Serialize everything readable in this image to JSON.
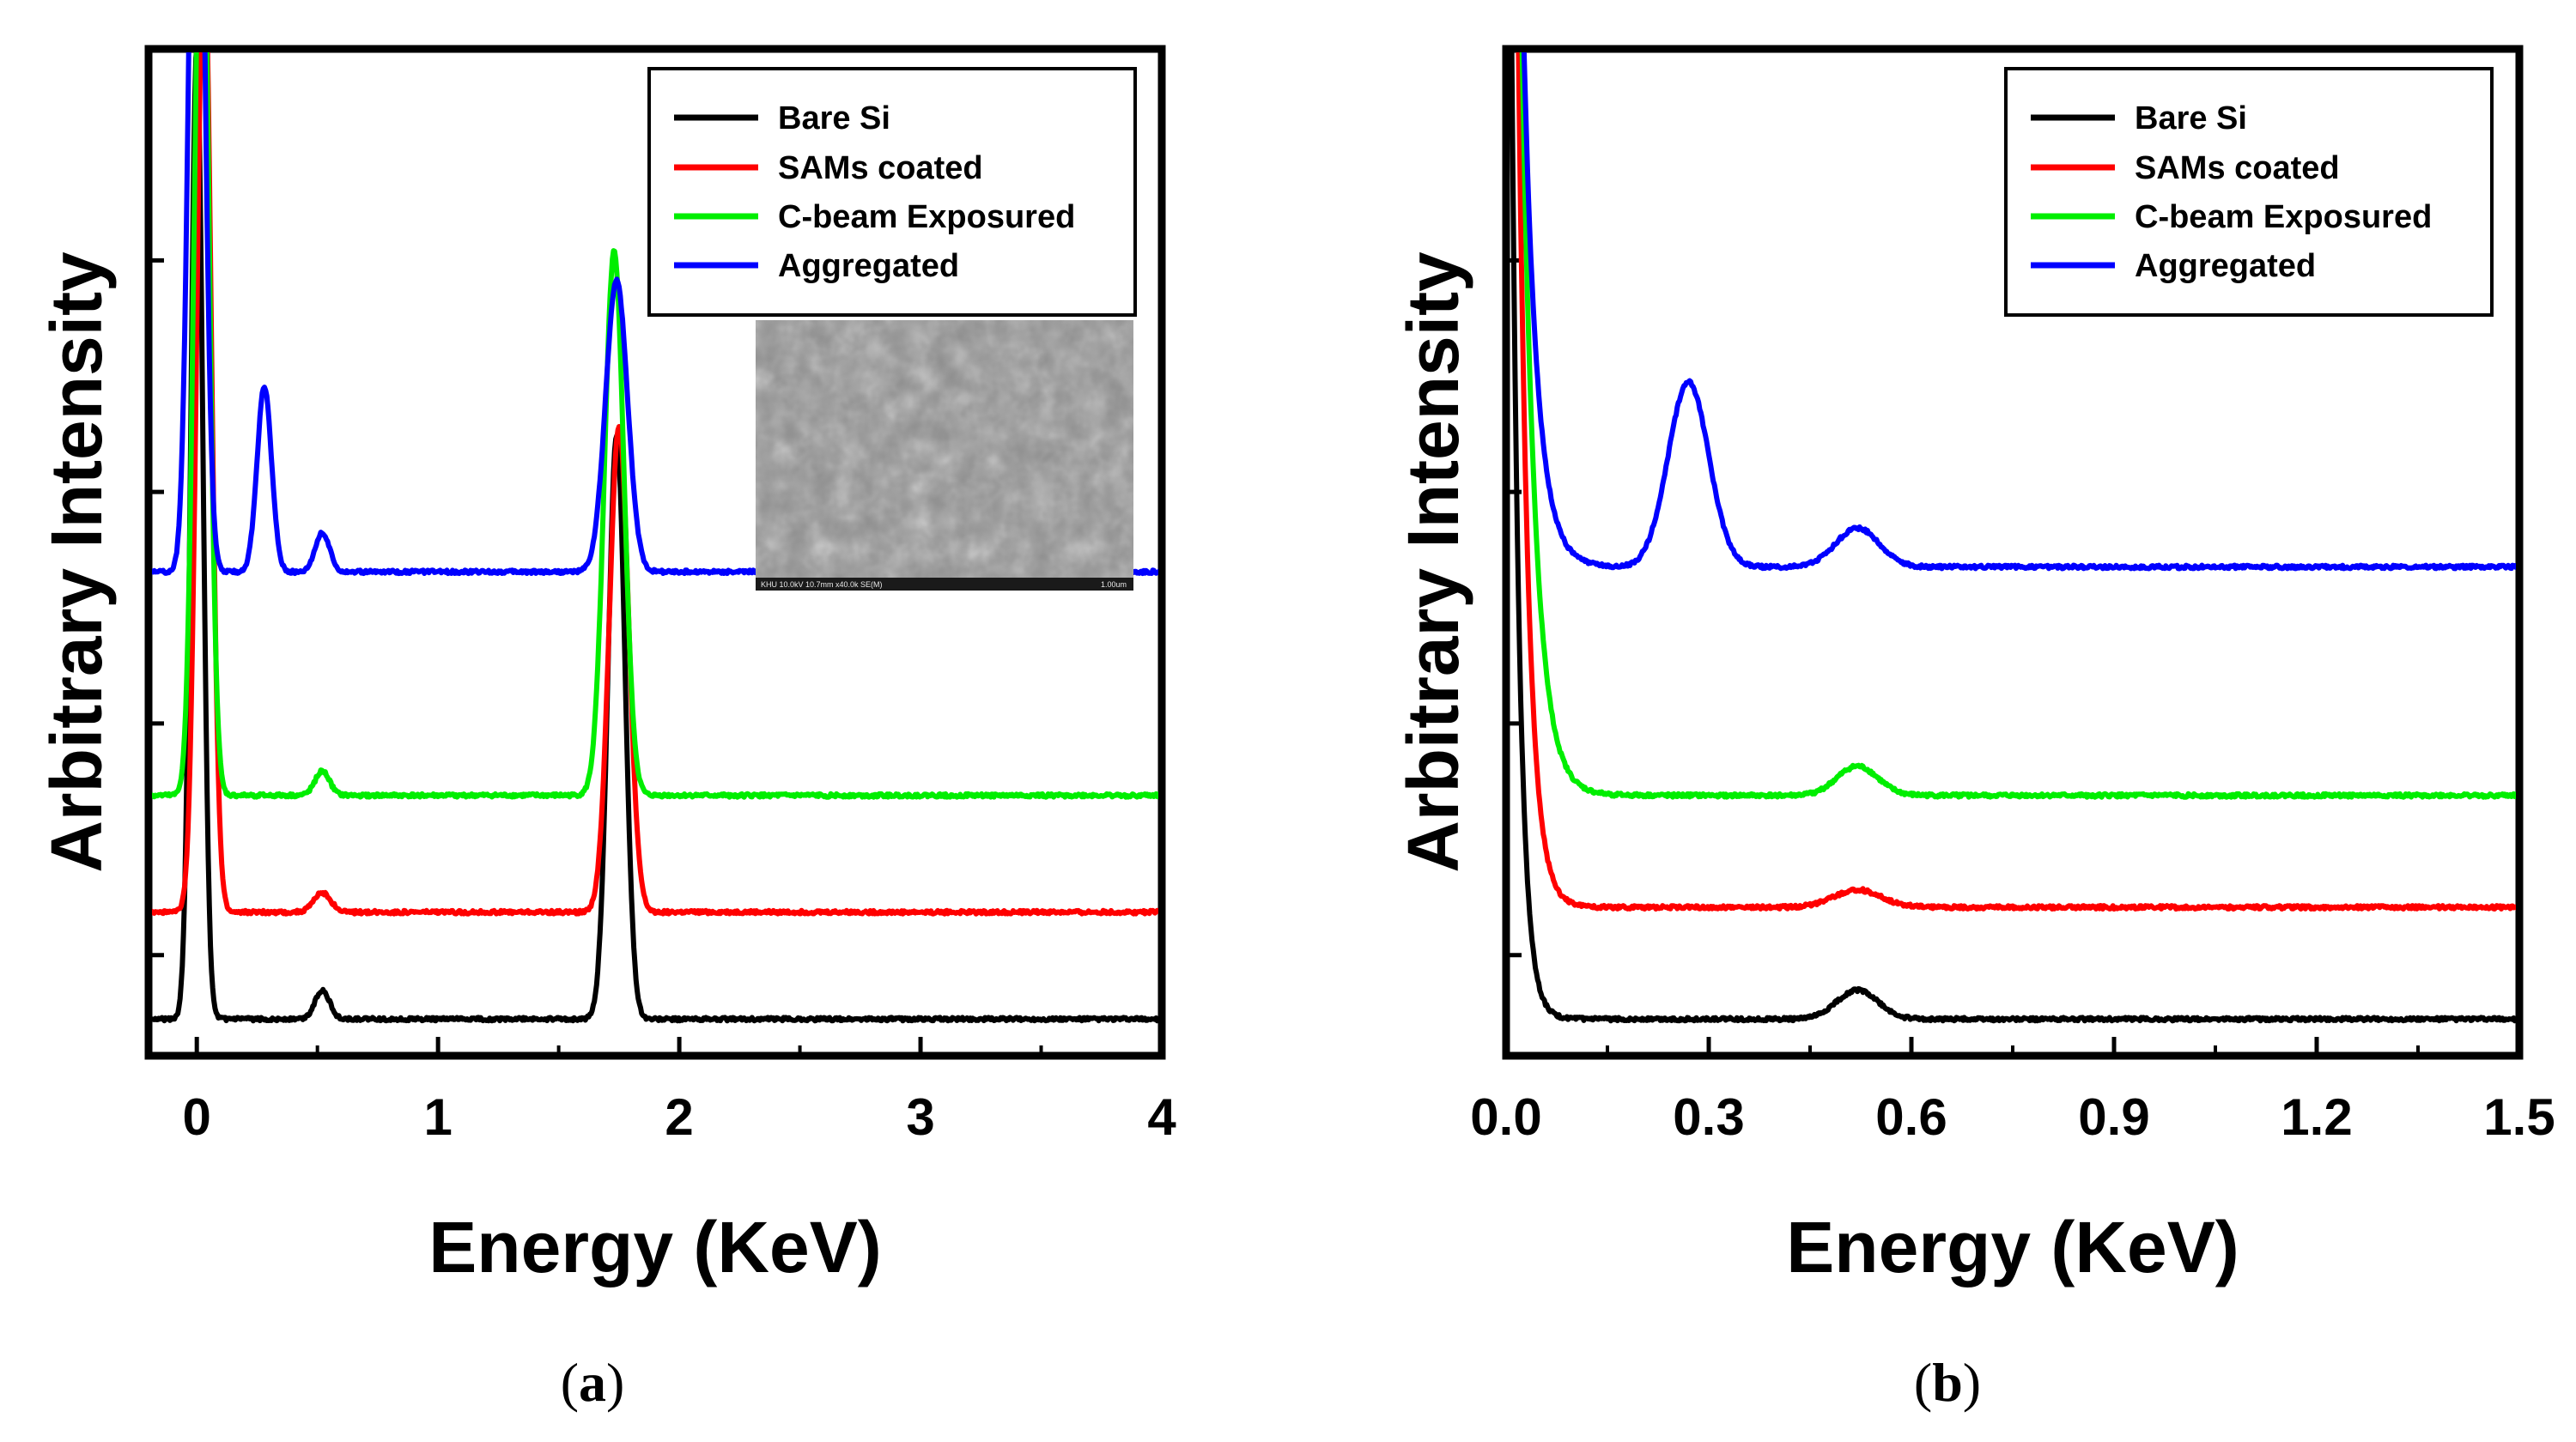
{
  "figure": {
    "panel_a_label": "a",
    "panel_b_label": "b"
  },
  "inset": {
    "caption": "KHU 10.0kV 10.7mm x40.0k SE(M)",
    "scale": "1.00um"
  },
  "chart_data": [
    {
      "type": "line",
      "panel": "a",
      "xlabel": "Energy (KeV)",
      "ylabel": "Arbitrary Intensity",
      "xlim": [
        -0.2,
        4.0
      ],
      "ylim": [
        0,
        100
      ],
      "xticks": [
        0,
        1,
        2,
        3,
        4
      ],
      "xtick_labels": [
        "0",
        "1",
        "2",
        "3",
        "4"
      ],
      "grid": false,
      "legend_position": "top-right",
      "series": [
        {
          "name": "Bare Si",
          "color": "#000000",
          "baseline": 2,
          "start_value": 2.5,
          "peaks": [
            {
              "x": 0.0,
              "height": 100,
              "width": 0.025
            },
            {
              "x": 0.52,
              "height": 3,
              "width": 0.03
            },
            {
              "x": 1.74,
              "height": 60,
              "width": 0.035
            }
          ],
          "tail": null
        },
        {
          "name": "SAMs coated",
          "color": "#ff0000",
          "baseline": 13,
          "start_value": 13,
          "peaks": [
            {
              "x": 0.03,
              "height": 100,
              "width": 0.03
            },
            {
              "x": 0.52,
              "height": 2,
              "width": 0.035
            },
            {
              "x": 1.75,
              "height": 50,
              "width": 0.04
            }
          ],
          "tail": null
        },
        {
          "name": "C-beam Exposured",
          "color": "#00ee00",
          "baseline": 25,
          "start_value": 25,
          "peaks": [
            {
              "x": 0.02,
              "height": 100,
              "width": 0.03
            },
            {
              "x": 0.52,
              "height": 2.5,
              "width": 0.03
            },
            {
              "x": 1.73,
              "height": 56,
              "width": 0.04
            }
          ],
          "tail": null
        },
        {
          "name": "Aggregated",
          "color": "#0000ff",
          "baseline": 48,
          "start_value": 48,
          "peaks": [
            {
              "x": 0.0,
              "height": 100,
              "width": 0.03
            },
            {
              "x": 0.28,
              "height": 19,
              "width": 0.03
            },
            {
              "x": 0.52,
              "height": 4,
              "width": 0.03
            },
            {
              "x": 1.74,
              "height": 30,
              "width": 0.045
            }
          ],
          "tail": null
        }
      ]
    },
    {
      "type": "line",
      "panel": "b",
      "xlabel": "Energy (KeV)",
      "ylabel": "Arbitrary Intensity",
      "xlim": [
        0.0,
        1.5
      ],
      "ylim": [
        0,
        100
      ],
      "xticks": [
        0.0,
        0.3,
        0.6,
        0.9,
        1.2,
        1.5
      ],
      "xtick_labels": [
        "0.0",
        "0.3",
        "0.6",
        "0.9",
        "1.2",
        "1.5"
      ],
      "grid": false,
      "legend_position": "top-right",
      "series": [
        {
          "name": "Bare Si",
          "color": "#000000",
          "baseline": 2,
          "start_value": 2,
          "peaks": [
            {
              "x": 0.52,
              "height": 3,
              "width": 0.03
            }
          ],
          "tail": {
            "end_x": 0.11,
            "decay": 0.012,
            "amplitude": 200
          }
        },
        {
          "name": "SAMs coated",
          "color": "#ff0000",
          "baseline": 13.5,
          "start_value": 13.5,
          "peaks": [
            {
              "x": 0.52,
              "height": 1.8,
              "width": 0.035
            }
          ],
          "tail": {
            "end_x": 0.14,
            "decay": 0.015,
            "amplitude": 300
          }
        },
        {
          "name": "C-beam Exposured",
          "color": "#00ee00",
          "baseline": 25,
          "start_value": 25,
          "peaks": [
            {
              "x": 0.52,
              "height": 3,
              "width": 0.03
            }
          ],
          "tail": {
            "end_x": 0.11,
            "decay": 0.02,
            "amplitude": 250
          }
        },
        {
          "name": "Aggregated",
          "color": "#0000ff",
          "baseline": 48.5,
          "start_value": 48.5,
          "peaks": [
            {
              "x": 0.27,
              "height": 19,
              "width": 0.03
            },
            {
              "x": 0.52,
              "height": 4,
              "width": 0.032
            }
          ],
          "tail": {
            "end_x": 0.09,
            "decay": 0.02,
            "amplitude": 200
          }
        }
      ]
    }
  ]
}
